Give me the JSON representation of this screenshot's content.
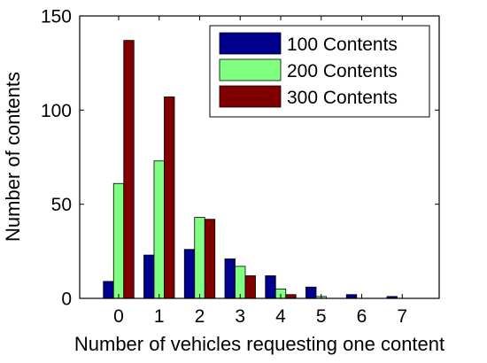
{
  "chart_data": {
    "type": "bar",
    "title": "",
    "xlabel": "Number of vehicles requesting one content",
    "ylabel": "Number of contents",
    "categories": [
      "0",
      "1",
      "2",
      "3",
      "4",
      "5",
      "6",
      "7"
    ],
    "ylim": [
      0,
      150
    ],
    "yticks": [
      0,
      50,
      100,
      150
    ],
    "grid": false,
    "legend_position": "top-right",
    "series": [
      {
        "name": "100 Contents",
        "color": "#00008f",
        "values": [
          9,
          23,
          26,
          21,
          12,
          6,
          2,
          1
        ]
      },
      {
        "name": "200 Contents",
        "color": "#80ff80",
        "values": [
          61,
          73,
          43,
          17,
          5,
          1,
          0,
          0
        ]
      },
      {
        "name": "300 Contents",
        "color": "#800000",
        "values": [
          137,
          107,
          42,
          12,
          2,
          0,
          0,
          0
        ]
      }
    ]
  }
}
